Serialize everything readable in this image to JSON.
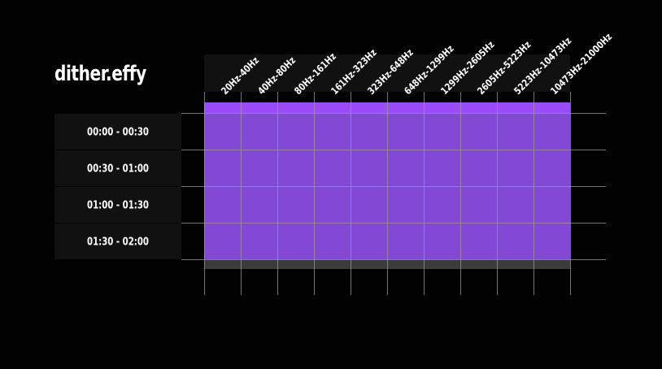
{
  "app": {
    "title": "dither.effy"
  },
  "colors": {
    "background": "#020202",
    "header_bg": "#111111",
    "cell_fill": "#8449d4",
    "cell_top_highlight": "#9c4cf6",
    "missing_strip": "#3b3b3b",
    "grid_line": "#9a9a9a",
    "text": "#ffffff"
  },
  "chart_data": {
    "type": "heatmap",
    "title": "dither.effy",
    "columns": [
      "20Hz-40Hz",
      "40Hz-80Hz",
      "80Hz-161Hz",
      "161Hz-323Hz",
      "323Hz-648Hz",
      "648Hz-1299Hz",
      "1299Hz-2605Hz",
      "2605Hz-5223Hz",
      "5223Hz-10473Hz",
      "10473Hz-21000Hz"
    ],
    "rows": [
      "00:00 - 00:30",
      "00:30 - 01:00",
      "01:00 - 01:30",
      "01:30 - 02:00"
    ],
    "values": [
      [
        1,
        1,
        1,
        1,
        1,
        1,
        1,
        1,
        1,
        1
      ],
      [
        1,
        1,
        1,
        1,
        1,
        1,
        1,
        1,
        1,
        1
      ],
      [
        1,
        1,
        1,
        1,
        1,
        1,
        1,
        1,
        1,
        1
      ],
      [
        1,
        1,
        1,
        1,
        1,
        1,
        1,
        1,
        1,
        1
      ]
    ],
    "legend": "none",
    "grid": true
  }
}
